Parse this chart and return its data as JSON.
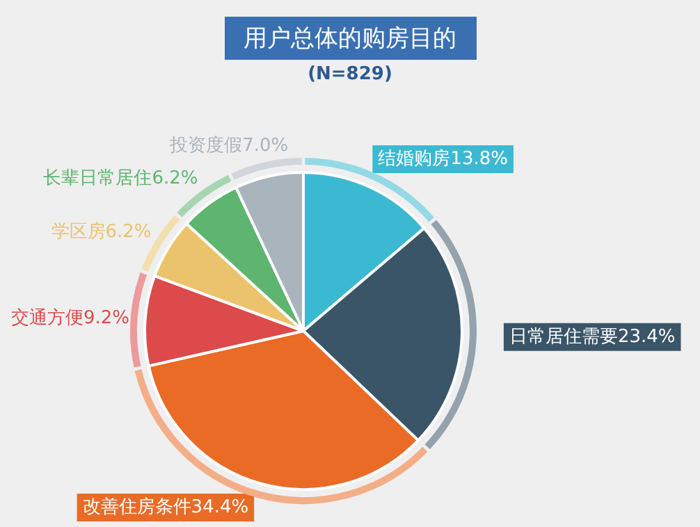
{
  "chart_data": {
    "type": "pie",
    "title": "用户总体的购房目的",
    "subtitle": "(N=829)",
    "categories": [
      "结婚购房",
      "日常居住需要",
      "改善住房条件",
      "交通方便",
      "学区房",
      "长辈日常居住",
      "投资度假"
    ],
    "values": [
      13.8,
      23.4,
      34.4,
      9.2,
      6.2,
      6.2,
      7.0
    ],
    "colors": [
      "#3cb9d2",
      "#3a5568",
      "#e96b25",
      "#dc4a4c",
      "#eac36c",
      "#5db56f",
      "#a9b4bd"
    ],
    "value_labels": [
      "13.8%",
      "23.4%",
      "34.4%",
      "9.2%",
      "6.2%",
      "6.2%",
      "7.0%"
    ],
    "legend": false
  }
}
